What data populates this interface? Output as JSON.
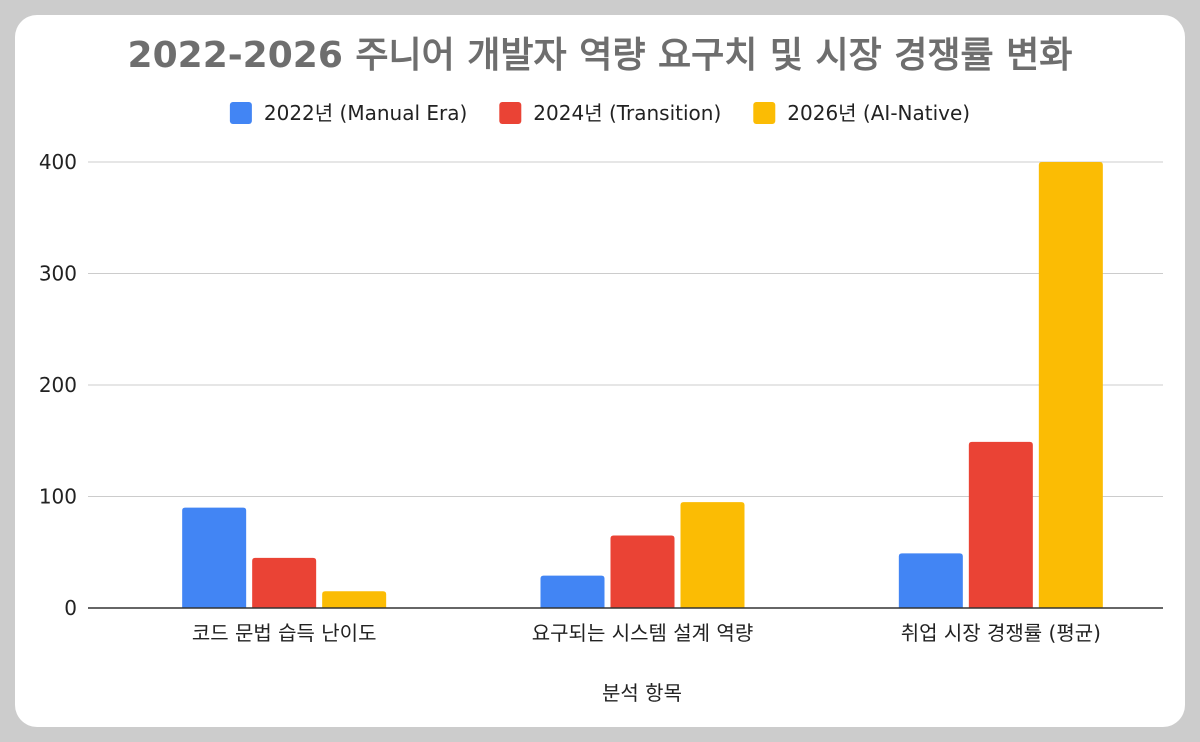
{
  "chart_data": {
    "type": "bar",
    "title": "2022-2026 주니어 개발자 역량 요구치 및 시장 경쟁률 변화",
    "xlabel": "분석 항목",
    "ylabel": "",
    "ylim": [
      0,
      400
    ],
    "yticks": [
      0,
      100,
      200,
      300,
      400
    ],
    "grid": true,
    "legend_position": "top",
    "categories": [
      "코드 문법 습득 난이도",
      "요구되는 시스템 설계 역량",
      "취업 시장 경쟁률 (평균)"
    ],
    "series": [
      {
        "name": "2022년 (Manual Era)",
        "color": "#4285f4",
        "values": [
          90,
          29,
          49
        ]
      },
      {
        "name": "2024년 (Transition)",
        "color": "#ea4335",
        "values": [
          45,
          65,
          149
        ]
      },
      {
        "name": "2026년 (AI-Native)",
        "color": "#fbbc04",
        "values": [
          15,
          95,
          400
        ]
      }
    ]
  }
}
